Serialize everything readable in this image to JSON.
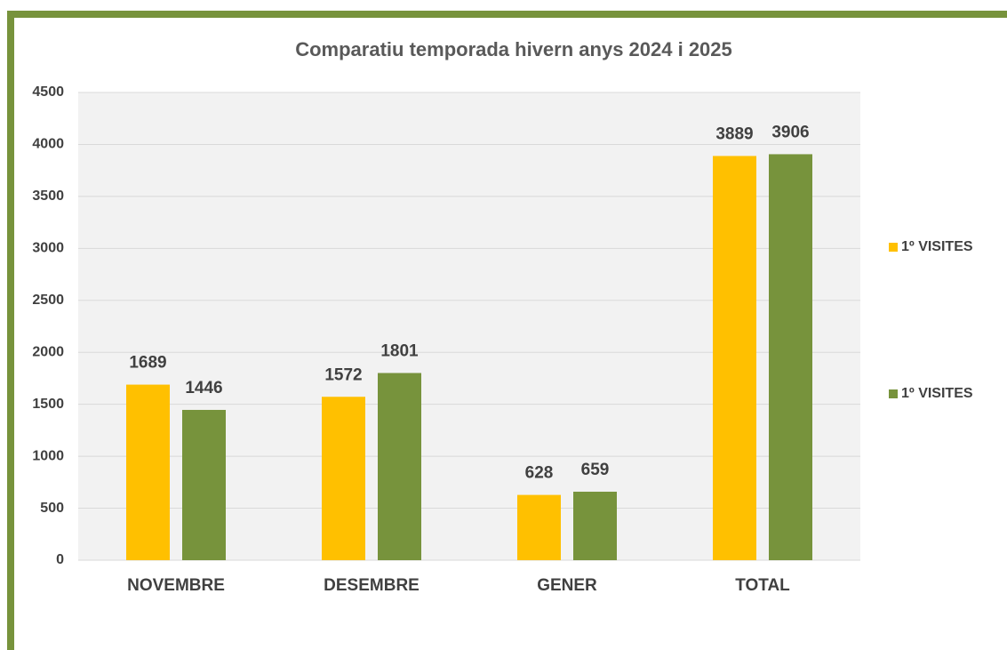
{
  "chart_data": {
    "type": "bar",
    "title": "Comparatiu temporada hivern anys 2024 i 2025",
    "categories": [
      "NOVEMBRE",
      "DESEMBRE",
      "GENER",
      "TOTAL"
    ],
    "series": [
      {
        "name": "1º VISITES",
        "color": "#ffc000",
        "values": [
          1689,
          1572,
          628,
          3889
        ]
      },
      {
        "name": "1º VISITES",
        "color": "#77933c",
        "values": [
          1446,
          1801,
          659,
          3906
        ]
      }
    ],
    "ylim": [
      0,
      4500
    ],
    "yticks": [
      0,
      500,
      1000,
      1500,
      2000,
      2500,
      3000,
      3500,
      4000,
      4500
    ],
    "grid": true,
    "legend": "right"
  }
}
